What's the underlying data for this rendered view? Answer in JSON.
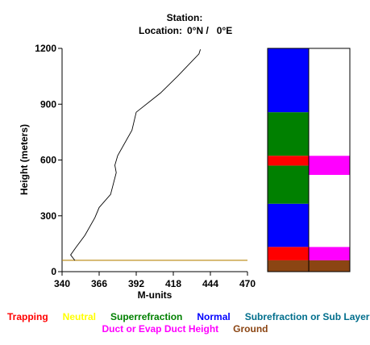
{
  "header": {
    "station_label": "Station:",
    "location_label": "Location:",
    "location_value": "0°N /   0°E"
  },
  "chart_data": {
    "type": "line",
    "xlabel": "M-units",
    "ylabel": "Height (meters)",
    "xlim": [
      340,
      470
    ],
    "ylim": [
      0,
      1200
    ],
    "xticks": [
      "340",
      "366",
      "392",
      "418",
      "444",
      "470"
    ],
    "yticks": [
      "0",
      "300",
      "600",
      "900",
      "1200"
    ],
    "series": [
      {
        "x": [
          349,
          346,
          350,
          356,
          363,
          366,
          374,
          378,
          377,
          379,
          389,
          392,
          409,
          421,
          436,
          437
        ],
        "y": [
          60,
          90,
          133,
          195,
          290,
          345,
          415,
          532,
          572,
          624,
          760,
          857,
          960,
          1050,
          1170,
          1195
        ]
      }
    ],
    "ground_level": 61,
    "ground_color": "#b8860b",
    "strip_colors": {
      "trapping": "#ff0000",
      "superrefraction": "#008000",
      "normal": "#0000ff",
      "duct": "#ff00ff",
      "ground": "#8b4513",
      "empty": "#ffffff"
    },
    "refraction_layers": [
      {
        "type": "ground",
        "from": 0,
        "to": 61
      },
      {
        "type": "trapping",
        "from": 61,
        "to": 133
      },
      {
        "type": "normal",
        "from": 133,
        "to": 365
      },
      {
        "type": "superrefraction",
        "from": 365,
        "to": 570
      },
      {
        "type": "trapping",
        "from": 570,
        "to": 623
      },
      {
        "type": "superrefraction",
        "from": 623,
        "to": 857
      },
      {
        "type": "normal",
        "from": 857,
        "to": 1200
      }
    ],
    "duct_layers": [
      {
        "type": "ground",
        "from": 0,
        "to": 61
      },
      {
        "type": "duct",
        "from": 61,
        "to": 133
      },
      {
        "type": "empty",
        "from": 133,
        "to": 520
      },
      {
        "type": "duct",
        "from": 520,
        "to": 623
      },
      {
        "type": "empty",
        "from": 623,
        "to": 1200
      }
    ]
  },
  "legend": {
    "row1": [
      {
        "label": "Trapping",
        "color": "#ff0000"
      },
      {
        "label": "Neutral",
        "color": "#ffff00"
      },
      {
        "label": "Superrefraction",
        "color": "#008000"
      },
      {
        "label": "Normal",
        "color": "#0000ff"
      },
      {
        "label": "Subrefraction or Sub Layer",
        "color": "#006e8c"
      }
    ],
    "row2": [
      {
        "label": "Duct or Evap Duct Height",
        "color": "#ff00ff"
      },
      {
        "label": "Ground",
        "color": "#8b4513"
      }
    ]
  }
}
